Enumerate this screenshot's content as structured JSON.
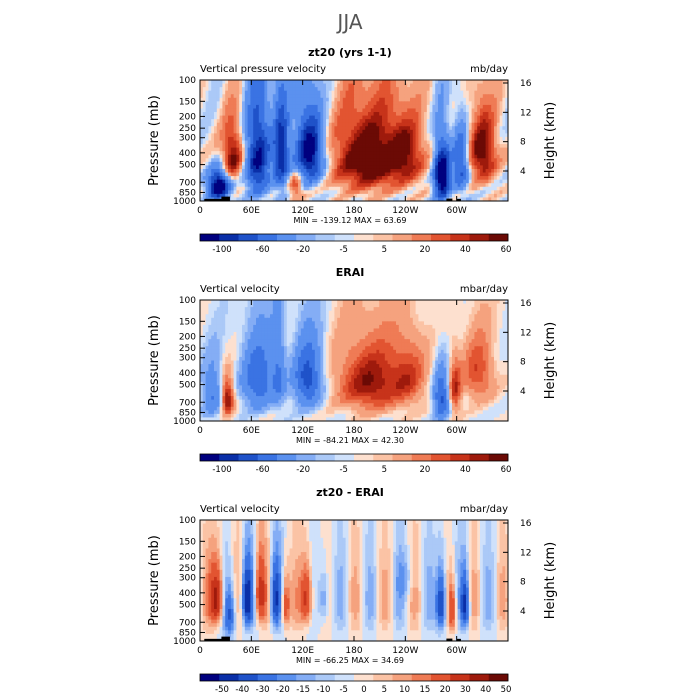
{
  "title": "JJA",
  "chart_data": [
    {
      "type": "heatmap",
      "title": "zt20 (yrs 1-1)",
      "left_label": "Vertical pressure velocity",
      "right_label": "mb/day",
      "ylabel": "Pressure (mb)",
      "ylabel_right": "Height (km)",
      "stats": "MIN = -139.12   MAX =   63.69",
      "x_ticks": [
        "0",
        "60E",
        "120E",
        "180",
        "120W",
        "60W"
      ],
      "y_ticks": [
        "100",
        "150",
        "200",
        "250",
        "300",
        "400",
        "500",
        "700",
        "850",
        "1000"
      ],
      "height_ticks": [
        "4",
        "8",
        "12",
        "16"
      ],
      "colorbar_labels": [
        "-100",
        "-60",
        "-20",
        "-5",
        "5",
        "20",
        "40",
        "60"
      ],
      "colorbar_colors": [
        "#00007f",
        "#0a2fa8",
        "#1f52c9",
        "#3a73e3",
        "#5b91ef",
        "#84adf5",
        "#abc9f7",
        "#cfe1fb",
        "#fde0cf",
        "#fbc3a5",
        "#f5a27e",
        "#ef7b55",
        "#e25431",
        "#c7331a",
        "#9e1a0c",
        "#6b0a05"
      ]
    },
    {
      "type": "heatmap",
      "title": "ERAI",
      "left_label": "Vertical velocity",
      "right_label": "mbar/day",
      "ylabel": "Pressure (mb)",
      "ylabel_right": "Height (km)",
      "stats": "MIN = -84.21   MAX =   42.30",
      "x_ticks": [
        "0",
        "60E",
        "120E",
        "180",
        "120W",
        "60W"
      ],
      "y_ticks": [
        "100",
        "150",
        "200",
        "250",
        "300",
        "400",
        "500",
        "700",
        "850",
        "1000"
      ],
      "height_ticks": [
        "4",
        "8",
        "12",
        "16"
      ],
      "colorbar_labels": [
        "-100",
        "-60",
        "-20",
        "-5",
        "5",
        "20",
        "40",
        "60"
      ],
      "colorbar_colors": [
        "#00007f",
        "#0a2fa8",
        "#1f52c9",
        "#3a73e3",
        "#5b91ef",
        "#84adf5",
        "#abc9f7",
        "#cfe1fb",
        "#fde0cf",
        "#fbc3a5",
        "#f5a27e",
        "#ef7b55",
        "#e25431",
        "#c7331a",
        "#9e1a0c",
        "#6b0a05"
      ]
    },
    {
      "type": "heatmap",
      "title": "zt20 - ERAI",
      "left_label": "Vertical velocity",
      "right_label": "mbar/day",
      "ylabel": "Pressure (mb)",
      "ylabel_right": "Height (km)",
      "stats": "MIN = -66.25   MAX =   34.69",
      "x_ticks": [
        "0",
        "60E",
        "120E",
        "180",
        "120W",
        "60W"
      ],
      "y_ticks": [
        "100",
        "150",
        "200",
        "250",
        "300",
        "400",
        "500",
        "700",
        "850",
        "1000"
      ],
      "height_ticks": [
        "4",
        "8",
        "12",
        "16"
      ],
      "colorbar_labels": [
        "-50",
        "-40",
        "-30",
        "-20",
        "-15",
        "-10",
        "-5",
        "0",
        "5",
        "10",
        "15",
        "20",
        "30",
        "40",
        "50"
      ],
      "colorbar_colors": [
        "#00007f",
        "#0a2fa8",
        "#1f52c9",
        "#3a73e3",
        "#5b91ef",
        "#84adf5",
        "#abc9f7",
        "#cfe1fb",
        "#fde0cf",
        "#fbc3a5",
        "#f5a27e",
        "#ef7b55",
        "#e25431",
        "#c7331a",
        "#9e1a0c",
        "#6b0a05"
      ]
    }
  ]
}
